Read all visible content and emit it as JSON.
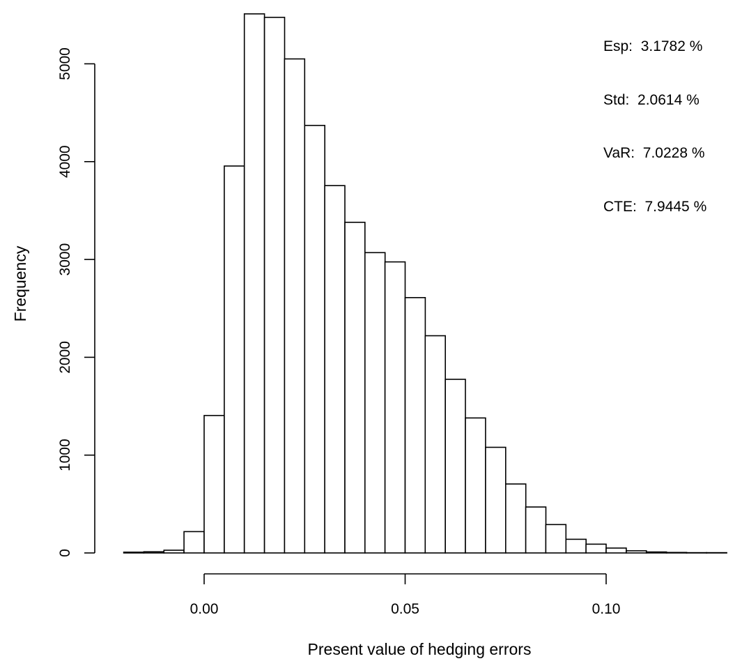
{
  "chart_data": {
    "type": "bar",
    "subtype": "histogram",
    "title": "",
    "xlabel": "Present value of hedging errors",
    "ylabel": "Frequency",
    "bin_width": 0.005,
    "bin_start": -0.02,
    "values": [
      8,
      12,
      28,
      218,
      1405,
      3955,
      5510,
      5475,
      5050,
      4370,
      3755,
      3380,
      3070,
      2975,
      2610,
      2220,
      1775,
      1380,
      1080,
      705,
      470,
      290,
      140,
      90,
      50,
      22,
      10,
      5,
      3,
      3
    ],
    "xlim": [
      -0.02,
      0.13
    ],
    "ylim": [
      0,
      5500
    ],
    "x_ticks": [
      0.0,
      0.05,
      0.1
    ],
    "x_tick_labels": [
      "0.00",
      "0.05",
      "0.10"
    ],
    "y_ticks": [
      0,
      1000,
      2000,
      3000,
      4000,
      5000
    ],
    "y_tick_labels": [
      "0",
      "1000",
      "2000",
      "3000",
      "4000",
      "5000"
    ],
    "bar_fill": "#ffffff",
    "bar_stroke": "#000000",
    "grid": false,
    "legend": "none",
    "annotations": [
      "Esp:  3.1782 %",
      "Std:  2.0614 %",
      "VaR:  7.0228 %",
      "CTE:  7.9445 %"
    ]
  }
}
